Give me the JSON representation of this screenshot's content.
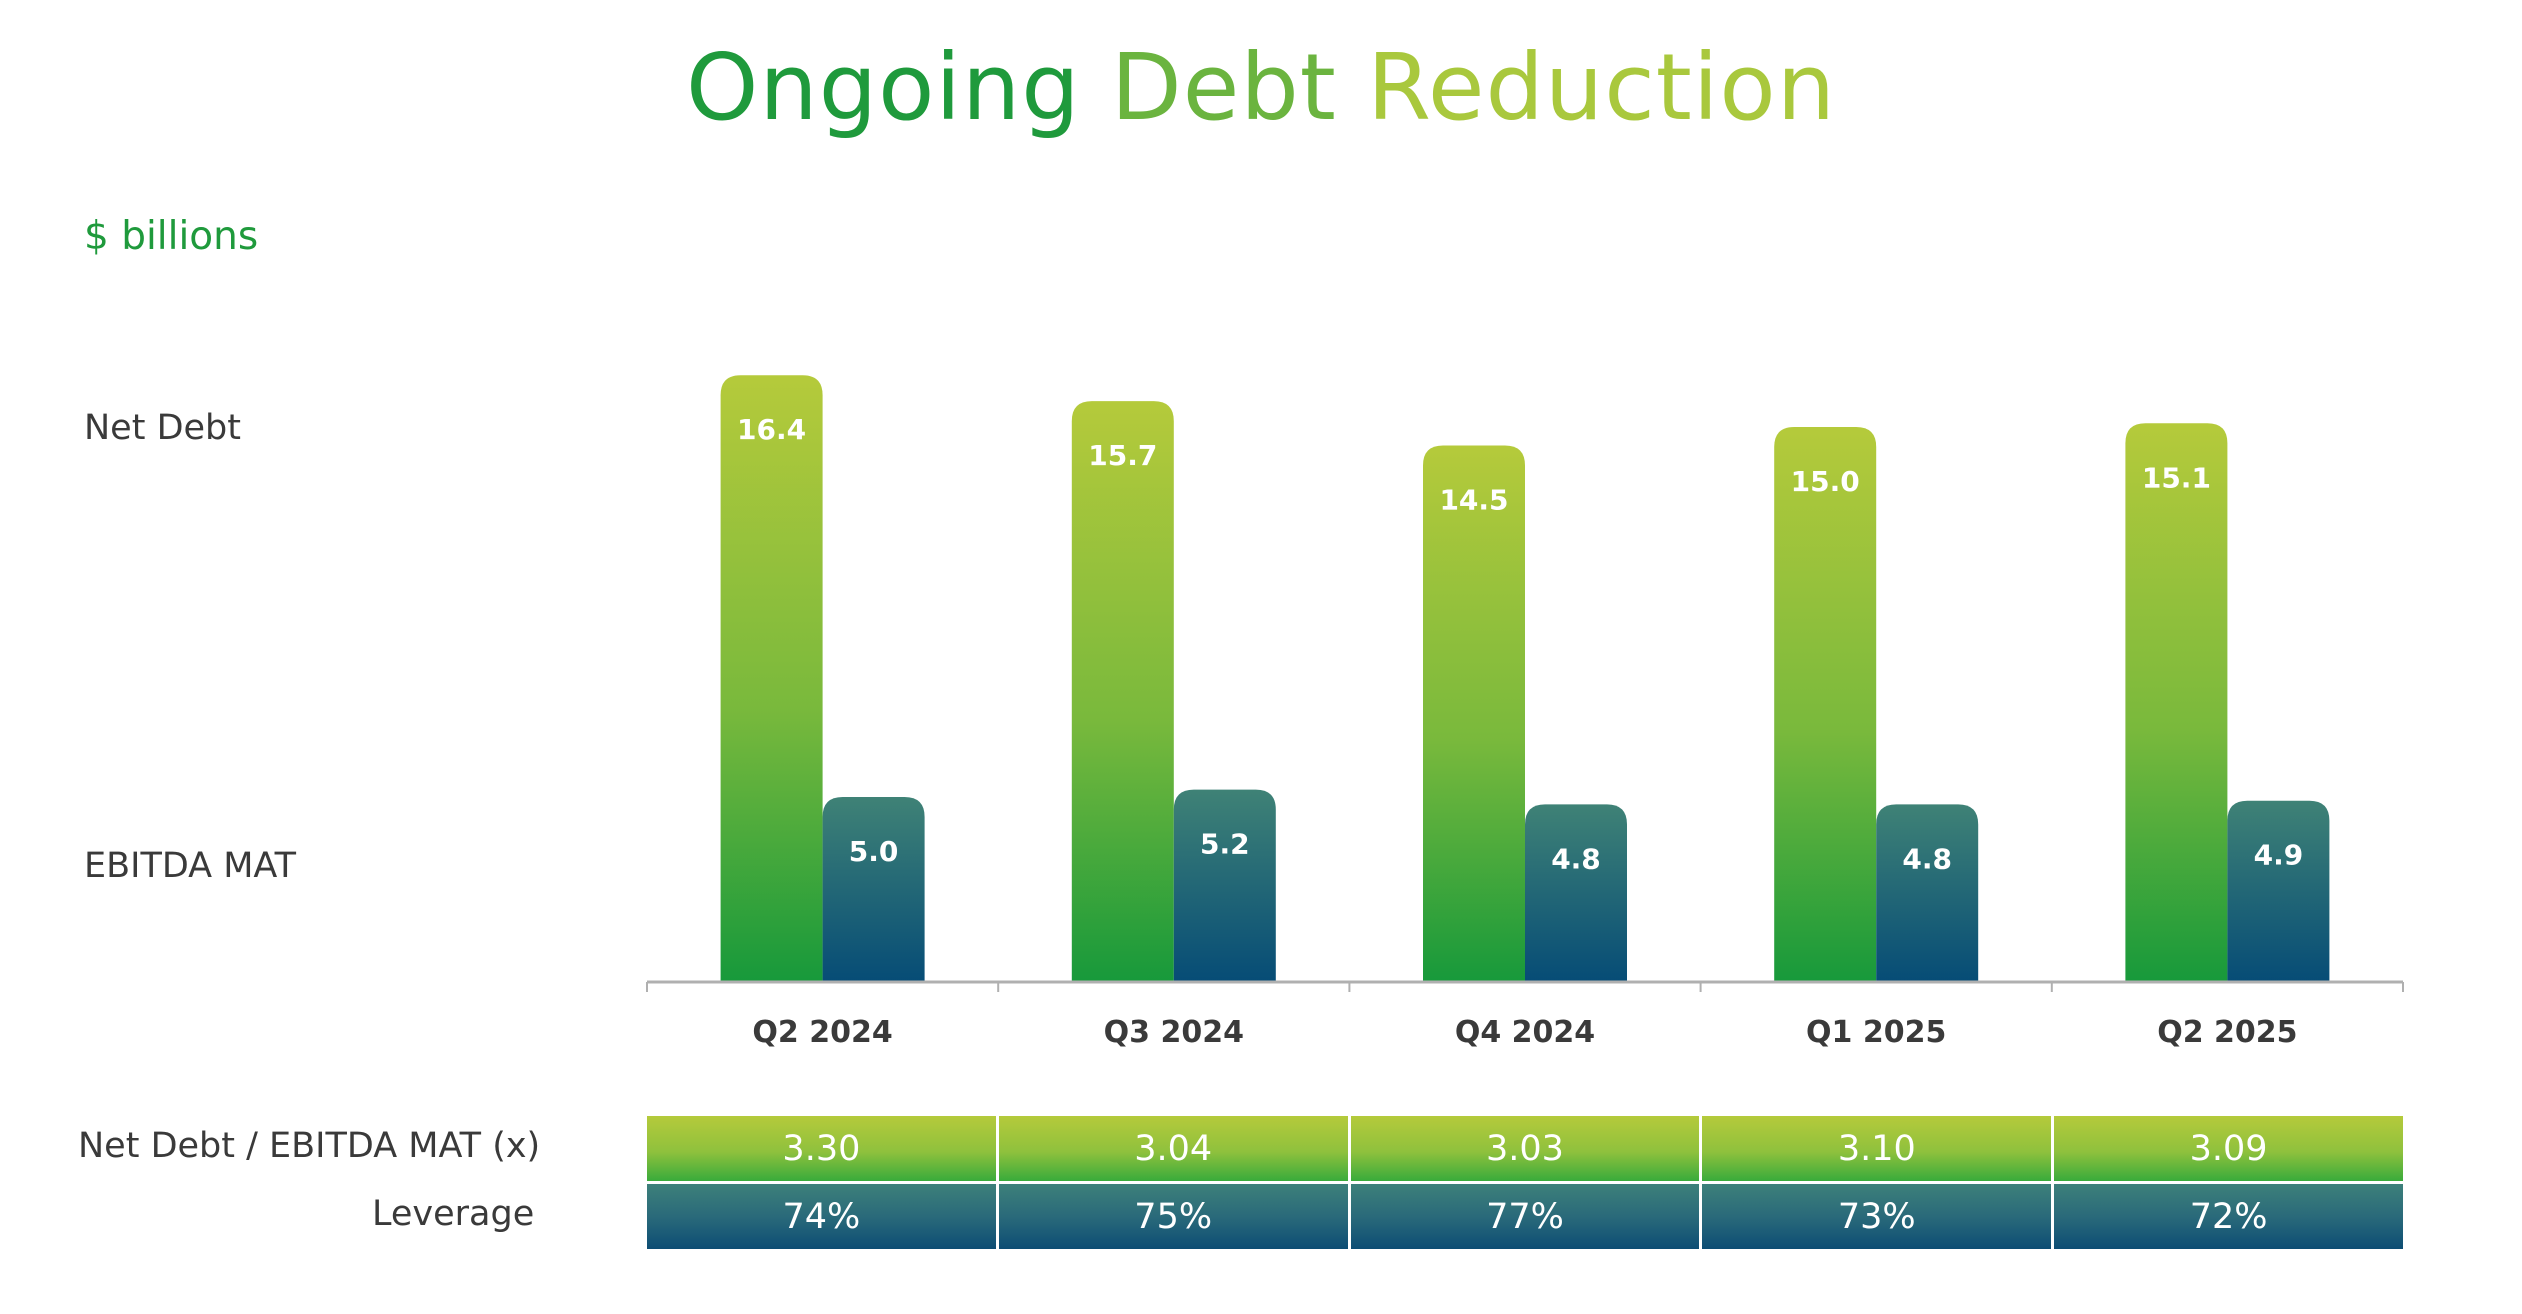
{
  "title": {
    "part1": "Ongoing",
    "part2": "Debt",
    "part3": "Reduction",
    "colors": [
      "#1f9a3c",
      "#6bb43f",
      "#a9c83d"
    ]
  },
  "unit": "$ billions",
  "row_labels": {
    "net_debt": "Net Debt",
    "ebitda": "EBITDA MAT",
    "ratio": "Net Debt / EBITDA MAT (x)",
    "leverage": "Leverage"
  },
  "colors": {
    "net_debt_top": "#b5ca3b",
    "net_debt_bottom": "#17993b",
    "ebitda_top": "#3f8276",
    "ebitda_bottom": "#064c76",
    "axis": "#b0b0b0",
    "bar_label": "#ffffff",
    "tick_label": "#3a3a3a"
  },
  "chart_data": {
    "type": "bar",
    "categories": [
      "Q2 2024",
      "Q3 2024",
      "Q4 2024",
      "Q1 2025",
      "Q2 2025"
    ],
    "series": [
      {
        "name": "Net Debt",
        "values": [
          16.4,
          15.7,
          14.5,
          15.0,
          15.1
        ],
        "labels": [
          "16.4",
          "15.7",
          "14.5",
          "15.0",
          "15.1"
        ]
      },
      {
        "name": "EBITDA MAT",
        "values": [
          5.0,
          5.2,
          4.8,
          4.8,
          4.9
        ],
        "labels": [
          "5.0",
          "5.2",
          "4.8",
          "4.8",
          "4.9"
        ]
      }
    ],
    "title": "Ongoing Debt Reduction",
    "ylabel": "$ billions",
    "grid": false,
    "legend": "left"
  },
  "table": {
    "ratio": [
      "3.30",
      "3.04",
      "3.03",
      "3.10",
      "3.09"
    ],
    "leverage": [
      "74%",
      "75%",
      "77%",
      "73%",
      "72%"
    ]
  }
}
